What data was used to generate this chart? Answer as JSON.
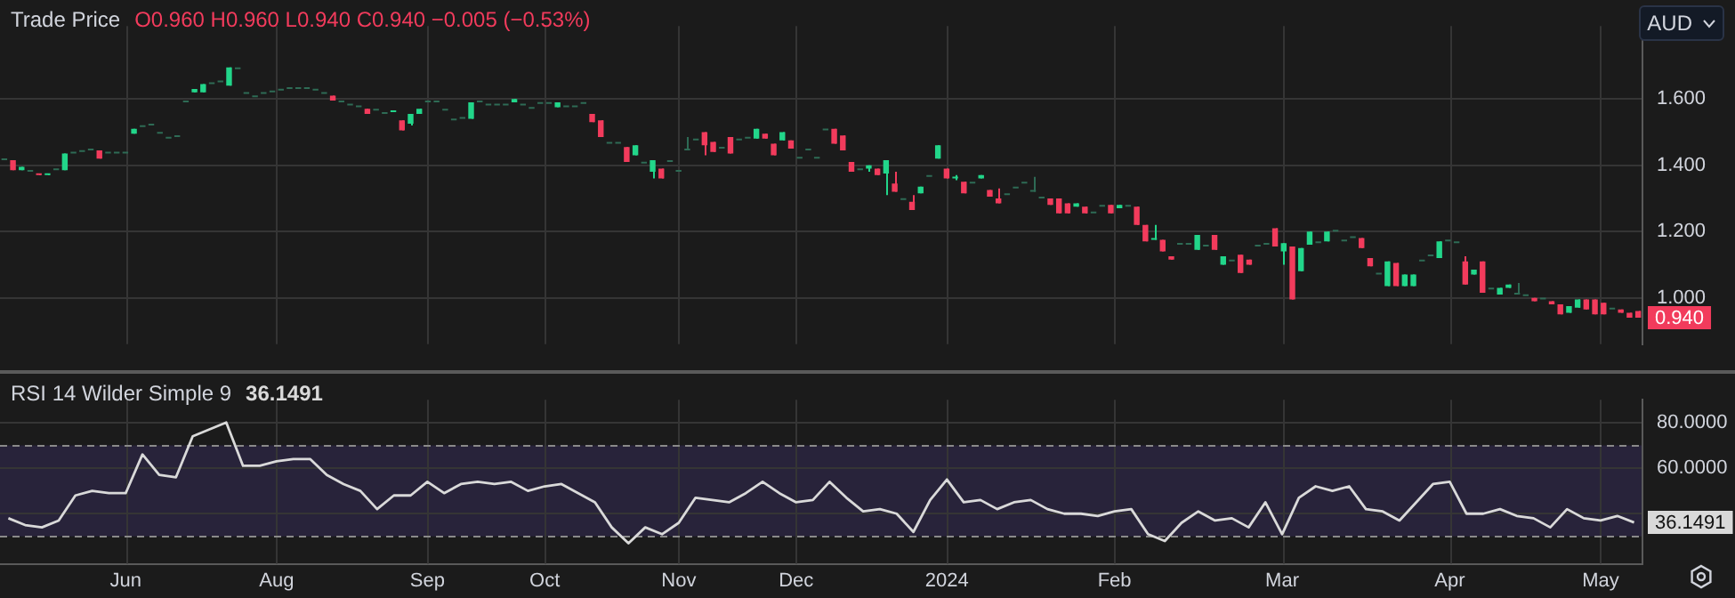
{
  "chart_data": [
    {
      "type": "candlestick",
      "title": "Trade Price",
      "subtitle": "O0.960 H0.960 L0.940 C0.940 −0.005 (−0.53%)",
      "categories": [
        null,
        null,
        null,
        null,
        null,
        null,
        null,
        null,
        null,
        null,
        null,
        null,
        null,
        null,
        null,
        null,
        null,
        null,
        null,
        null,
        null,
        null,
        null,
        null,
        null,
        null,
        null,
        null,
        null,
        null,
        null,
        null,
        null,
        null,
        null,
        null,
        null,
        null,
        null,
        null,
        null,
        null,
        null,
        null,
        null,
        null,
        null,
        null,
        null,
        null,
        null,
        null,
        null,
        null,
        null,
        null,
        null,
        null,
        null,
        null,
        null,
        null,
        null,
        null,
        null,
        null,
        null,
        null,
        null,
        null,
        null,
        null,
        null,
        null,
        null,
        null,
        null,
        null,
        null,
        null,
        null,
        null,
        null,
        null,
        null,
        null,
        null,
        null,
        null,
        null,
        null,
        null,
        null,
        null,
        null,
        null,
        null,
        null,
        null,
        null,
        null,
        null,
        null,
        null,
        null,
        null,
        null,
        null,
        null,
        null,
        null,
        null,
        null,
        null,
        null,
        null,
        null,
        null,
        null,
        null,
        null,
        null,
        null,
        null,
        null,
        null,
        null,
        null,
        null,
        null,
        null,
        null,
        null,
        null,
        null,
        null,
        null,
        null,
        null,
        null,
        null,
        null,
        null,
        null,
        null,
        null,
        null,
        null,
        null,
        null,
        null,
        null,
        null,
        null,
        null,
        null,
        null,
        null,
        null,
        null,
        null,
        null,
        null,
        null,
        null,
        null,
        null,
        null,
        null,
        null,
        null,
        null,
        null,
        null,
        null,
        null,
        null,
        null,
        null,
        null,
        null,
        null,
        null,
        null,
        null,
        null,
        null,
        null,
        null,
        null
      ],
      "ohlc": [
        [
          1.415,
          1.415,
          1.415,
          1.415
        ],
        [
          1.415,
          1.415,
          1.385,
          1.385
        ],
        [
          1.385,
          1.395,
          1.385,
          1.395
        ],
        [
          1.38,
          1.38,
          1.38,
          1.38
        ],
        [
          1.375,
          1.375,
          1.37,
          1.37
        ],
        [
          1.37,
          1.375,
          1.37,
          1.375
        ],
        [
          1.385,
          1.385,
          1.385,
          1.385
        ],
        [
          1.385,
          1.435,
          1.385,
          1.435
        ],
        [
          1.435,
          1.435,
          1.435,
          1.435
        ],
        [
          1.44,
          1.44,
          1.44,
          1.44
        ],
        [
          1.445,
          1.445,
          1.445,
          1.445
        ],
        [
          1.445,
          1.445,
          1.42,
          1.42
        ],
        [
          1.435,
          1.435,
          1.435,
          1.435
        ],
        [
          1.435,
          1.435,
          1.435,
          1.435
        ],
        [
          1.435,
          1.435,
          1.435,
          1.435
        ],
        [
          1.495,
          1.51,
          1.495,
          1.51
        ],
        [
          1.515,
          1.515,
          1.515,
          1.515
        ],
        [
          1.52,
          1.52,
          1.52,
          1.52
        ],
        [
          1.495,
          1.495,
          1.495,
          1.495
        ],
        [
          1.48,
          1.48,
          1.48,
          1.48
        ],
        [
          1.485,
          1.485,
          1.485,
          1.485
        ],
        [
          1.59,
          1.59,
          1.59,
          1.59
        ],
        [
          1.62,
          1.63,
          1.62,
          1.63
        ],
        [
          1.62,
          1.645,
          1.62,
          1.645
        ],
        [
          1.645,
          1.645,
          1.645,
          1.645
        ],
        [
          1.65,
          1.65,
          1.65,
          1.65
        ],
        [
          1.64,
          1.695,
          1.64,
          1.695
        ],
        [
          1.69,
          1.69,
          1.69,
          1.69
        ],
        [
          1.615,
          1.615,
          1.615,
          1.615
        ],
        [
          1.605,
          1.605,
          1.605,
          1.605
        ],
        [
          1.615,
          1.615,
          1.615,
          1.615
        ],
        [
          1.62,
          1.62,
          1.62,
          1.62
        ],
        [
          1.625,
          1.625,
          1.625,
          1.625
        ],
        [
          1.63,
          1.63,
          1.63,
          1.63
        ],
        [
          1.63,
          1.63,
          1.63,
          1.63
        ],
        [
          1.63,
          1.63,
          1.63,
          1.63
        ],
        [
          1.625,
          1.625,
          1.625,
          1.625
        ],
        [
          1.615,
          1.615,
          1.615,
          1.615
        ],
        [
          1.61,
          1.61,
          1.595,
          1.595
        ],
        [
          1.59,
          1.59,
          1.59,
          1.59
        ],
        [
          1.58,
          1.58,
          1.58,
          1.58
        ],
        [
          1.575,
          1.575,
          1.575,
          1.575
        ],
        [
          1.57,
          1.57,
          1.555,
          1.555
        ],
        [
          1.565,
          1.565,
          1.565,
          1.565
        ],
        [
          1.555,
          1.555,
          1.555,
          1.555
        ],
        [
          1.56,
          1.565,
          1.56,
          1.565
        ],
        [
          1.535,
          1.535,
          1.505,
          1.505
        ],
        [
          1.525,
          1.555,
          1.52,
          1.555
        ],
        [
          1.555,
          1.57,
          1.555,
          1.57
        ],
        [
          1.59,
          1.59,
          1.59,
          1.59
        ],
        [
          1.59,
          1.59,
          1.59,
          1.59
        ],
        [
          1.565,
          1.565,
          1.565,
          1.565
        ],
        [
          1.535,
          1.535,
          1.535,
          1.535
        ],
        [
          1.54,
          1.54,
          1.54,
          1.54
        ],
        [
          1.54,
          1.59,
          1.54,
          1.59
        ],
        [
          1.59,
          1.59,
          1.59,
          1.59
        ],
        [
          1.58,
          1.58,
          1.58,
          1.58
        ],
        [
          1.58,
          1.58,
          1.58,
          1.58
        ],
        [
          1.58,
          1.58,
          1.58,
          1.58
        ],
        [
          1.59,
          1.6,
          1.59,
          1.6
        ],
        [
          1.58,
          1.58,
          1.58,
          1.58
        ],
        [
          1.57,
          1.57,
          1.57,
          1.57
        ],
        [
          1.585,
          1.585,
          1.585,
          1.585
        ],
        [
          1.585,
          1.585,
          1.585,
          1.585
        ],
        [
          1.575,
          1.59,
          1.575,
          1.59
        ],
        [
          1.575,
          1.575,
          1.575,
          1.575
        ],
        [
          1.575,
          1.575,
          1.575,
          1.575
        ],
        [
          1.585,
          1.585,
          1.585,
          1.585
        ],
        [
          1.555,
          1.555,
          1.53,
          1.53
        ],
        [
          1.535,
          1.535,
          1.485,
          1.485
        ],
        [
          1.465,
          1.465,
          1.465,
          1.465
        ],
        [
          1.465,
          1.465,
          1.465,
          1.465
        ],
        [
          1.455,
          1.455,
          1.41,
          1.41
        ],
        [
          1.43,
          1.46,
          1.43,
          1.46
        ],
        [
          1.405,
          1.405,
          1.405,
          1.405
        ],
        [
          1.38,
          1.415,
          1.36,
          1.415
        ],
        [
          1.39,
          1.39,
          1.36,
          1.36
        ],
        [
          1.41,
          1.41,
          1.41,
          1.41
        ],
        [
          1.38,
          1.38,
          1.38,
          1.38
        ],
        [
          1.445,
          1.485,
          1.445,
          1.445
        ],
        [
          1.475,
          1.475,
          1.475,
          1.475
        ],
        [
          1.5,
          1.5,
          1.43,
          1.46
        ],
        [
          1.47,
          1.47,
          1.44,
          1.44
        ],
        [
          1.45,
          1.45,
          1.45,
          1.45
        ],
        [
          1.485,
          1.485,
          1.435,
          1.435
        ],
        [
          1.475,
          1.475,
          1.475,
          1.475
        ],
        [
          1.48,
          1.48,
          1.48,
          1.48
        ],
        [
          1.48,
          1.51,
          1.48,
          1.51
        ],
        [
          1.495,
          1.495,
          1.48,
          1.48
        ],
        [
          1.465,
          1.465,
          1.43,
          1.43
        ],
        [
          1.475,
          1.5,
          1.475,
          1.5
        ],
        [
          1.475,
          1.475,
          1.45,
          1.45
        ],
        [
          1.42,
          1.42,
          1.42,
          1.42
        ],
        [
          1.445,
          1.445,
          1.445,
          1.445
        ],
        [
          1.42,
          1.42,
          1.42,
          1.42
        ],
        [
          1.505,
          1.505,
          1.505,
          1.505
        ],
        [
          1.51,
          1.51,
          1.465,
          1.465
        ],
        [
          1.49,
          1.49,
          1.445,
          1.445
        ],
        [
          1.41,
          1.41,
          1.38,
          1.38
        ],
        [
          1.385,
          1.385,
          1.385,
          1.385
        ],
        [
          1.39,
          1.4,
          1.38,
          1.4
        ],
        [
          1.39,
          1.39,
          1.37,
          1.37
        ],
        [
          1.375,
          1.415,
          1.31,
          1.415
        ],
        [
          1.345,
          1.38,
          1.32,
          1.32
        ],
        [
          1.295,
          1.295,
          1.295,
          1.295
        ],
        [
          1.29,
          1.31,
          1.265,
          1.265
        ],
        [
          1.315,
          1.335,
          1.315,
          1.335
        ],
        [
          1.365,
          1.365,
          1.365,
          1.365
        ],
        [
          1.42,
          1.46,
          1.42,
          1.46
        ],
        [
          1.39,
          1.39,
          1.36,
          1.36
        ],
        [
          1.36,
          1.37,
          1.355,
          1.365
        ],
        [
          1.35,
          1.35,
          1.315,
          1.315
        ],
        [
          1.345,
          1.345,
          1.345,
          1.345
        ],
        [
          1.36,
          1.37,
          1.36,
          1.37
        ],
        [
          1.325,
          1.325,
          1.305,
          1.305
        ],
        [
          1.3,
          1.33,
          1.285,
          1.285
        ],
        [
          1.31,
          1.31,
          1.31,
          1.31
        ],
        [
          1.33,
          1.33,
          1.33,
          1.33
        ],
        [
          1.345,
          1.345,
          1.345,
          1.345
        ],
        [
          1.32,
          1.365,
          1.32,
          1.32
        ],
        [
          1.3,
          1.3,
          1.3,
          1.3
        ],
        [
          1.3,
          1.3,
          1.28,
          1.28
        ],
        [
          1.3,
          1.3,
          1.255,
          1.255
        ],
        [
          1.285,
          1.285,
          1.255,
          1.255
        ],
        [
          1.275,
          1.285,
          1.275,
          1.285
        ],
        [
          1.275,
          1.275,
          1.255,
          1.255
        ],
        [
          1.255,
          1.255,
          1.255,
          1.255
        ],
        [
          1.275,
          1.275,
          1.275,
          1.275
        ],
        [
          1.28,
          1.28,
          1.255,
          1.255
        ],
        [
          1.27,
          1.28,
          1.27,
          1.28
        ],
        [
          1.275,
          1.275,
          1.275,
          1.275
        ],
        [
          1.275,
          1.275,
          1.22,
          1.22
        ],
        [
          1.22,
          1.22,
          1.17,
          1.17
        ],
        [
          1.175,
          1.22,
          1.175,
          1.18
        ],
        [
          1.175,
          1.175,
          1.14,
          1.14
        ],
        [
          1.125,
          1.125,
          1.115,
          1.115
        ],
        [
          1.16,
          1.16,
          1.16,
          1.16
        ],
        [
          1.16,
          1.16,
          1.16,
          1.16
        ],
        [
          1.145,
          1.19,
          1.145,
          1.19
        ],
        [
          1.155,
          1.155,
          1.155,
          1.155
        ],
        [
          1.19,
          1.19,
          1.145,
          1.145
        ],
        [
          1.1,
          1.125,
          1.1,
          1.125
        ],
        [
          1.11,
          1.11,
          1.11,
          1.11
        ],
        [
          1.13,
          1.13,
          1.075,
          1.075
        ],
        [
          1.115,
          1.115,
          1.1,
          1.1
        ],
        [
          1.155,
          1.155,
          1.155,
          1.155
        ],
        [
          1.16,
          1.16,
          1.16,
          1.16
        ],
        [
          1.21,
          1.21,
          1.155,
          1.155
        ],
        [
          1.14,
          1.165,
          1.1,
          1.165
        ],
        [
          1.155,
          1.155,
          0.995,
          0.995
        ],
        [
          1.08,
          1.15,
          1.08,
          1.15
        ],
        [
          1.16,
          1.2,
          1.16,
          1.2
        ],
        [
          1.165,
          1.165,
          1.165,
          1.165
        ],
        [
          1.17,
          1.2,
          1.17,
          1.2
        ],
        [
          1.2,
          1.2,
          1.2,
          1.2
        ],
        [
          1.17,
          1.17,
          1.17,
          1.17
        ],
        [
          1.18,
          1.18,
          1.18,
          1.18
        ],
        [
          1.18,
          1.18,
          1.15,
          1.15
        ],
        [
          1.12,
          1.12,
          1.095,
          1.095
        ],
        [
          1.07,
          1.07,
          1.07,
          1.07
        ],
        [
          1.035,
          1.11,
          1.035,
          1.11
        ],
        [
          1.105,
          1.105,
          1.035,
          1.035
        ],
        [
          1.035,
          1.07,
          1.035,
          1.07
        ],
        [
          1.035,
          1.07,
          1.035,
          1.07
        ],
        [
          1.11,
          1.11,
          1.11,
          1.11
        ],
        [
          1.125,
          1.125,
          1.125,
          1.125
        ],
        [
          1.12,
          1.17,
          1.12,
          1.17
        ],
        [
          1.17,
          1.17,
          1.17,
          1.17
        ],
        [
          1.165,
          1.165,
          1.165,
          1.165
        ],
        [
          1.11,
          1.125,
          1.04,
          1.04
        ],
        [
          1.07,
          1.085,
          1.07,
          1.085
        ],
        [
          1.11,
          1.11,
          1.015,
          1.015
        ],
        [
          1.025,
          1.025,
          1.025,
          1.025
        ],
        [
          1.01,
          1.03,
          1.01,
          1.03
        ],
        [
          1.03,
          1.04,
          1.03,
          1.04
        ],
        [
          1.01,
          1.045,
          1.01,
          1.01
        ],
        [
          1.005,
          1.005,
          1.005,
          1.005
        ],
        [
          1,
          1,
          0.99,
          0.99
        ],
        [
          0.995,
          0.995,
          0.995,
          0.995
        ],
        [
          0.99,
          0.99,
          0.98,
          0.98
        ],
        [
          0.98,
          0.98,
          0.95,
          0.95
        ],
        [
          0.955,
          0.975,
          0.955,
          0.975
        ],
        [
          0.97,
          0.995,
          0.97,
          0.995
        ],
        [
          0.995,
          0.995,
          0.965,
          0.965
        ],
        [
          0.995,
          0.995,
          0.95,
          0.95
        ],
        [
          0.985,
          0.985,
          0.95,
          0.95
        ],
        [
          0.965,
          0.965,
          0.965,
          0.965
        ],
        [
          0.965,
          0.965,
          0.955,
          0.955
        ],
        [
          0.955,
          0.955,
          0.94,
          0.94
        ],
        [
          0.96,
          0.96,
          0.94,
          0.94
        ]
      ],
      "colors": [
        "#2e6b55",
        "#f23b5c",
        "#22d68a",
        "#2e6b55",
        "#f23b5c",
        "#22d68a",
        "#2e6b55",
        "#22d68a",
        "#2e6b55",
        "#2e6b55",
        "#2e6b55",
        "#f23b5c",
        "#2e6b55",
        "#2e6b55",
        "#2e6b55",
        "#22d68a",
        "#2e6b55",
        "#2e6b55",
        "#2e6b55",
        "#2e6b55",
        "#2e6b55",
        "#2e6b55",
        "#22d68a",
        "#22d68a",
        "#2e6b55",
        "#2e6b55",
        "#22d68a",
        "#2e6b55",
        "#2e6b55",
        "#2e6b55",
        "#2e6b55",
        "#2e6b55",
        "#2e6b55",
        "#2e6b55",
        "#2e6b55",
        "#2e6b55",
        "#2e6b55",
        "#2e6b55",
        "#f23b5c",
        "#2e6b55",
        "#2e6b55",
        "#2e6b55",
        "#f23b5c",
        "#2e6b55",
        "#2e6b55",
        "#22d68a",
        "#f23b5c",
        "#22d68a",
        "#22d68a",
        "#2e6b55",
        "#2e6b55",
        "#2e6b55",
        "#2e6b55",
        "#2e6b55",
        "#22d68a",
        "#2e6b55",
        "#2e6b55",
        "#2e6b55",
        "#2e6b55",
        "#22d68a",
        "#2e6b55",
        "#2e6b55",
        "#2e6b55",
        "#2e6b55",
        "#22d68a",
        "#2e6b55",
        "#2e6b55",
        "#2e6b55",
        "#f23b5c",
        "#f23b5c",
        "#2e6b55",
        "#2e6b55",
        "#f23b5c",
        "#22d68a",
        "#2e6b55",
        "#22d68a",
        "#f23b5c",
        "#2e6b55",
        "#2e6b55",
        "#2e6b55",
        "#2e6b55",
        "#f23b5c",
        "#f23b5c",
        "#2e6b55",
        "#f23b5c",
        "#2e6b55",
        "#2e6b55",
        "#22d68a",
        "#f23b5c",
        "#f23b5c",
        "#22d68a",
        "#f23b5c",
        "#2e6b55",
        "#2e6b55",
        "#2e6b55",
        "#2e6b55",
        "#f23b5c",
        "#f23b5c",
        "#f23b5c",
        "#2e6b55",
        "#22d68a",
        "#f23b5c",
        "#22d68a",
        "#f23b5c",
        "#2e6b55",
        "#f23b5c",
        "#22d68a",
        "#2e6b55",
        "#22d68a",
        "#f23b5c",
        "#22d68a",
        "#f23b5c",
        "#2e6b55",
        "#22d68a",
        "#f23b5c",
        "#f23b5c",
        "#2e6b55",
        "#2e6b55",
        "#2e6b55",
        "#2e6b55",
        "#2e6b55",
        "#f23b5c",
        "#f23b5c",
        "#f23b5c",
        "#22d68a",
        "#f23b5c",
        "#2e6b55",
        "#2e6b55",
        "#f23b5c",
        "#22d68a",
        "#2e6b55",
        "#f23b5c",
        "#f23b5c",
        "#22d68a",
        "#f23b5c",
        "#f23b5c",
        "#2e6b55",
        "#2e6b55",
        "#22d68a",
        "#2e6b55",
        "#f23b5c",
        "#22d68a",
        "#2e6b55",
        "#f23b5c",
        "#f23b5c",
        "#2e6b55",
        "#2e6b55",
        "#f23b5c",
        "#22d68a",
        "#f23b5c",
        "#22d68a",
        "#22d68a",
        "#2e6b55",
        "#22d68a",
        "#2e6b55",
        "#2e6b55",
        "#2e6b55",
        "#f23b5c",
        "#f23b5c",
        "#2e6b55",
        "#22d68a",
        "#f23b5c",
        "#22d68a",
        "#22d68a",
        "#2e6b55",
        "#2e6b55",
        "#22d68a",
        "#2e6b55",
        "#2e6b55",
        "#f23b5c",
        "#22d68a",
        "#f23b5c",
        "#2e6b55",
        "#22d68a",
        "#22d68a",
        "#2e6b55",
        "#2e6b55",
        "#f23b5c",
        "#2e6b55",
        "#f23b5c",
        "#f23b5c",
        "#22d68a",
        "#22d68a",
        "#f23b5c",
        "#f23b5c",
        "#f23b5c",
        "#2e6b55",
        "#f23b5c",
        "#f23b5c",
        "#f23b5c"
      ],
      "ylim": [
        0.86,
        1.82
      ],
      "yticks": [
        {
          "value": 1,
          "label": "1.000"
        },
        {
          "value": 1.2,
          "label": "1.200"
        },
        {
          "value": 1.4,
          "label": "1.400"
        },
        {
          "value": 1.6,
          "label": "1.600"
        }
      ],
      "grid": true,
      "tick_labels": "y",
      "annotations": [
        "0.940",
        "AUD"
      ]
    },
    {
      "type": "line",
      "title": "RSI 14 Wilder Simple 9",
      "subtitle": "36.1491",
      "categories": [
        null,
        null,
        null,
        null,
        null,
        null,
        null,
        "Jun",
        null,
        null,
        null,
        null,
        null,
        null,
        null,
        null,
        "Aug",
        null,
        null,
        null,
        null,
        null,
        null,
        null,
        null,
        "Sep",
        null,
        null,
        null,
        null,
        null,
        null,
        "Oct",
        null,
        null,
        null,
        null,
        null,
        null,
        null,
        "Nov",
        null,
        null,
        null,
        null,
        null,
        null,
        "Dec",
        null,
        null,
        null,
        null,
        null,
        null,
        null,
        null,
        "2024",
        null,
        null,
        null,
        null,
        null,
        null,
        null,
        null,
        null,
        "Feb",
        null,
        null,
        null,
        null,
        null,
        null,
        null,
        null,
        null,
        "Mar",
        null,
        null,
        null,
        null,
        null,
        null,
        null,
        null,
        null,
        "Apr",
        null,
        null,
        null,
        null,
        null,
        null,
        null,
        null,
        "May",
        null,
        null
      ],
      "series": [
        {
          "color": "#d9d9d9",
          "values": [
            38,
            35,
            34,
            37,
            48,
            50,
            49,
            49,
            66,
            57,
            56,
            74,
            77,
            80,
            61,
            61,
            63,
            64,
            64,
            57,
            53,
            50,
            42,
            48,
            48,
            54,
            49,
            53,
            54,
            53,
            54,
            50,
            52,
            53,
            49,
            45,
            34,
            27,
            34,
            31,
            36,
            47,
            46,
            45,
            49,
            54,
            49,
            45,
            46,
            54,
            47,
            41,
            42,
            40,
            32,
            46,
            55,
            45,
            46,
            42,
            45,
            46,
            42,
            40,
            40,
            39,
            41,
            42,
            31,
            28,
            36,
            41,
            37,
            38,
            34,
            45,
            31,
            47,
            52,
            50,
            52,
            42,
            41,
            37,
            45,
            53,
            54,
            40,
            40,
            42,
            39,
            38,
            34,
            42,
            38,
            37,
            39,
            36.1491
          ]
        }
      ],
      "ylim": [
        18,
        90
      ],
      "yticks": [
        {
          "value": 40,
          "label": null
        },
        {
          "value": 60,
          "label": "60.0000"
        },
        {
          "value": 80,
          "label": "80.0000"
        }
      ],
      "grid": true,
      "marker": "none",
      "bands": [
        {
          "axis": "y",
          "from": 30,
          "to": 70,
          "color": "#28233a"
        }
      ],
      "ref_lines": [
        {
          "axis": "y",
          "value": 70,
          "color": "#8a8a8a",
          "line_style": "dashed"
        },
        {
          "axis": "y",
          "value": 30,
          "color": "#8a8a8a",
          "line_style": "dashed"
        }
      ],
      "annotations": [
        "36.1491"
      ]
    }
  ]
}
